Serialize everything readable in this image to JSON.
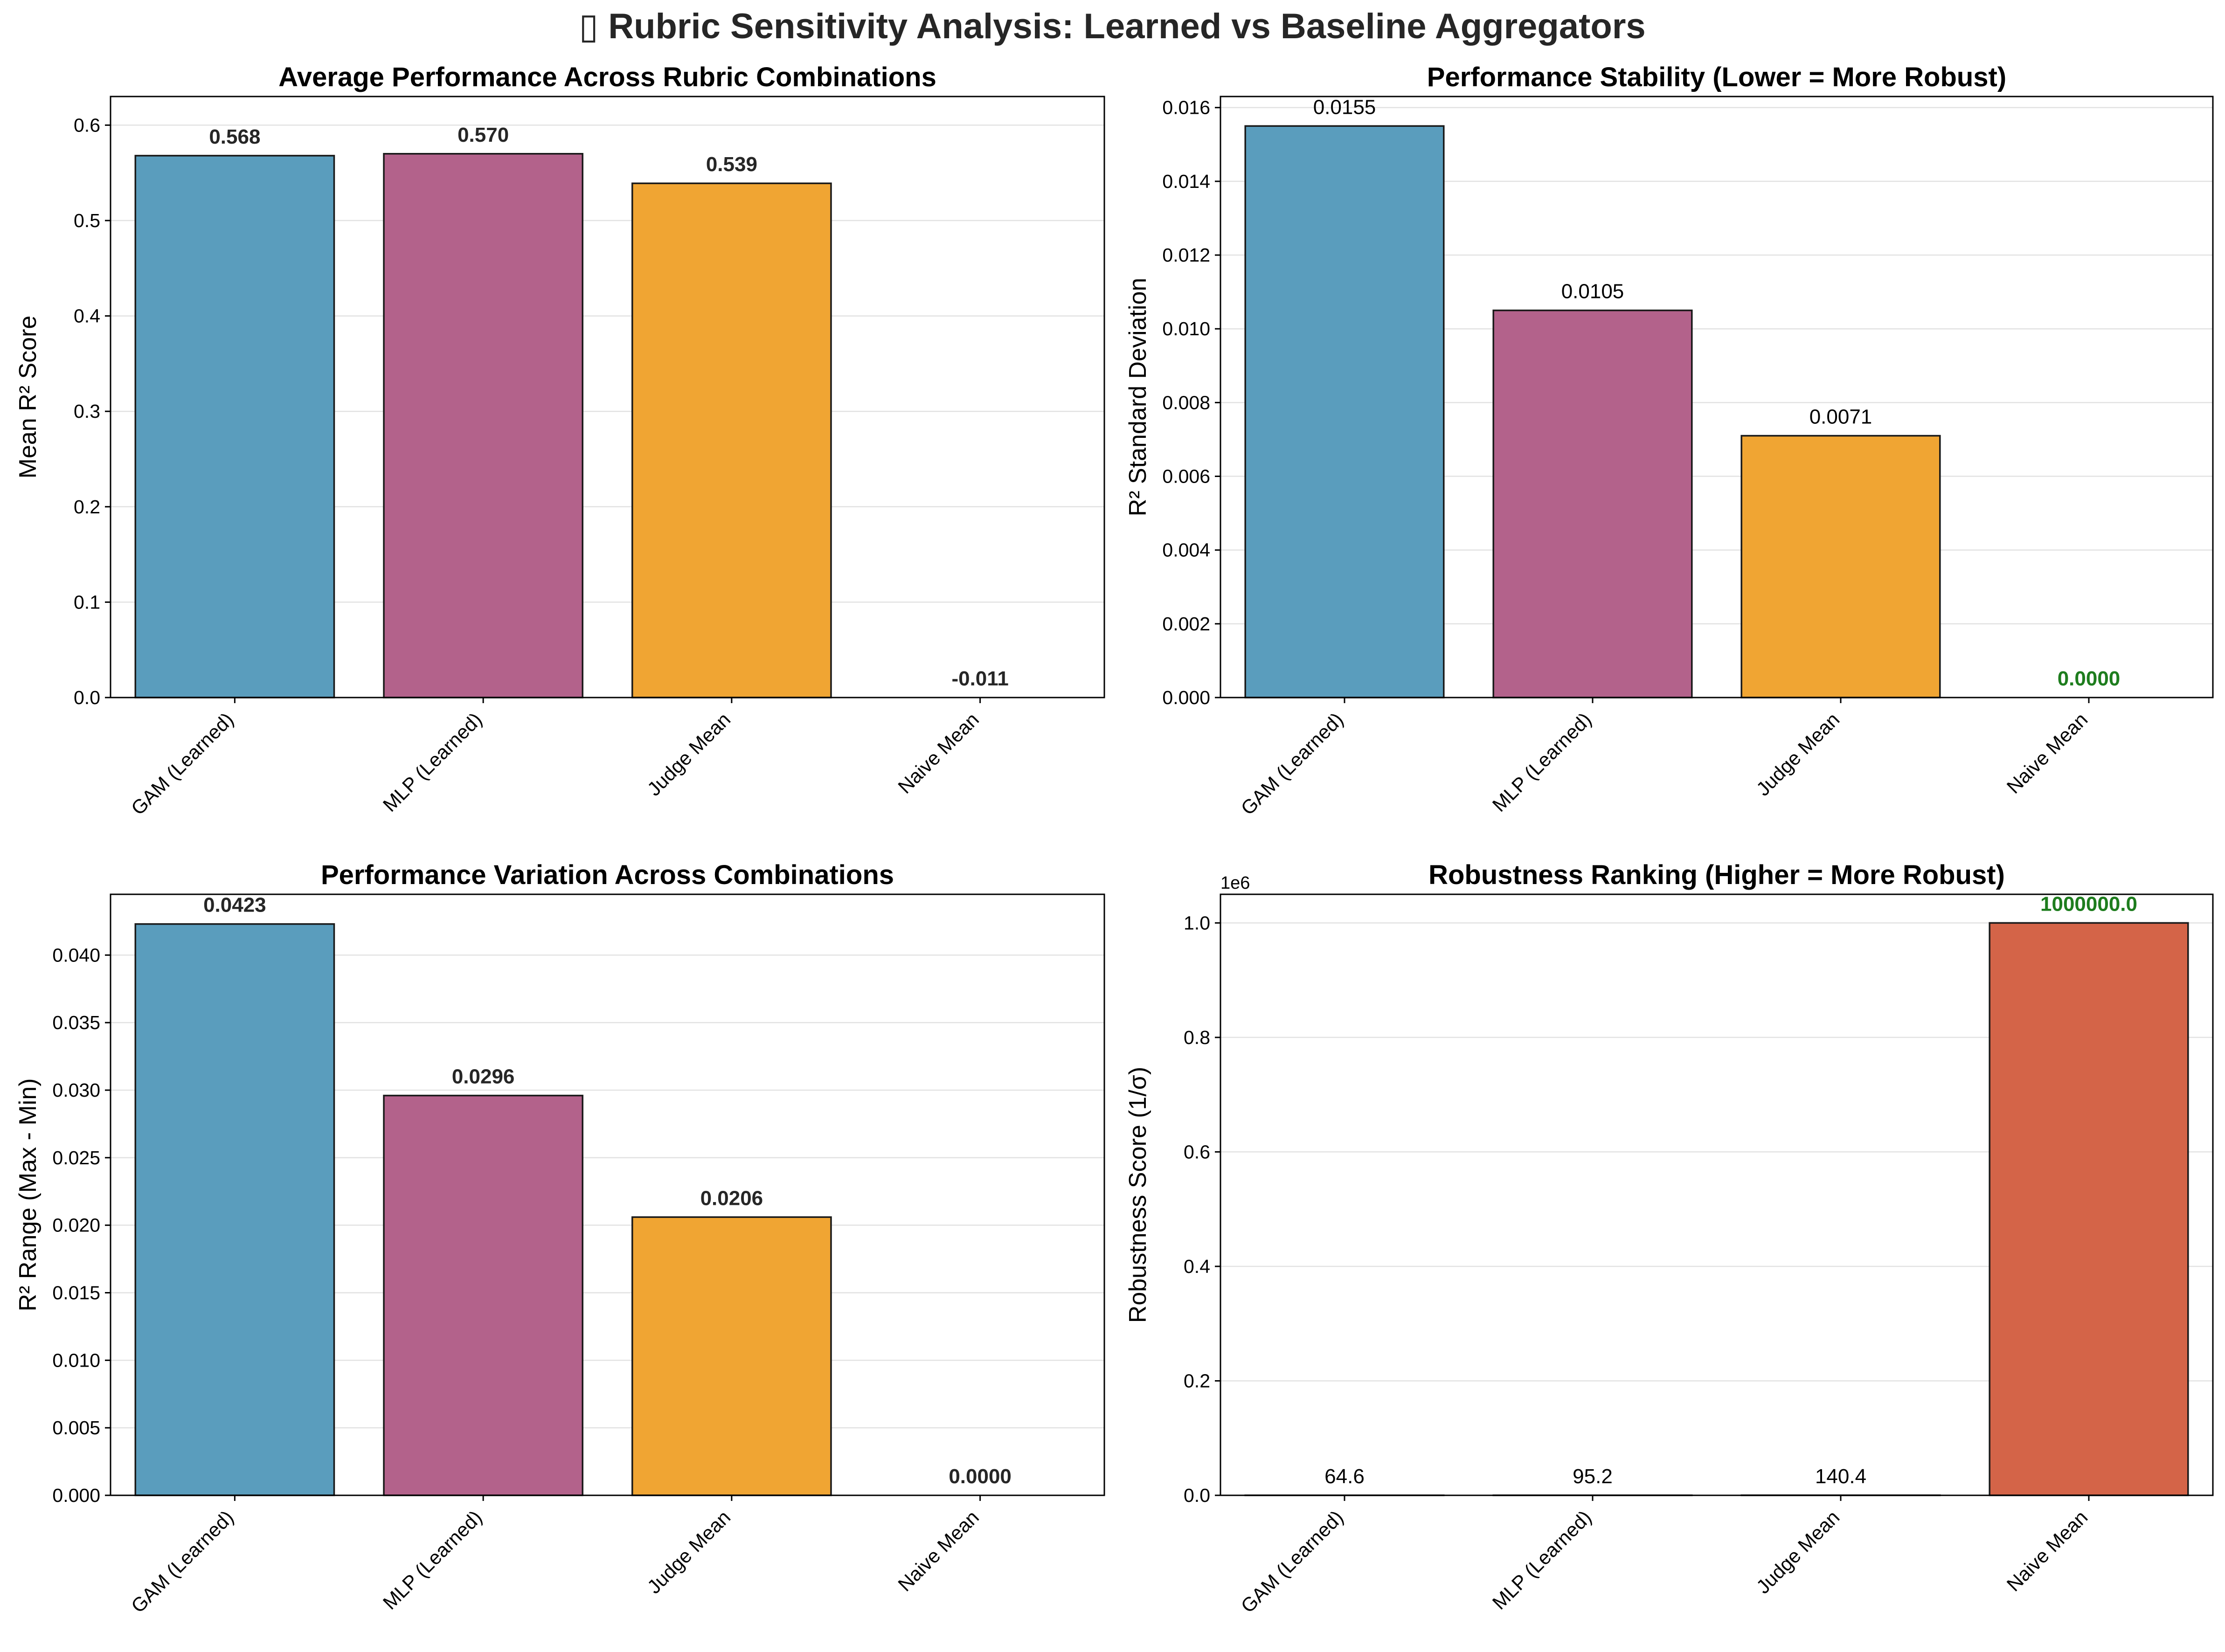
{
  "figure": {
    "suptitle": "▯ Rubric Sensitivity Analysis: Learned vs Baseline Aggregators"
  },
  "chart_data": [
    {
      "type": "bar",
      "title": "Average Performance Across Rubric Combinations",
      "xlabel": "",
      "ylabel": "Mean R² Score",
      "categories": [
        "GAM (Learned)",
        "MLP (Learned)",
        "Judge Mean",
        "Naive Mean"
      ],
      "values": [
        0.568,
        0.57,
        0.539,
        -0.011
      ],
      "value_labels": [
        "0.568",
        "0.570",
        "0.539",
        "-0.011"
      ],
      "label_styles": [
        "bold",
        "bold",
        "bold",
        "bold"
      ],
      "colors": [
        "#5a9dbd",
        "#b3628b",
        "#f0a533",
        "#d46448"
      ],
      "ylim": [
        0,
        0.63
      ],
      "yticks": [
        0.0,
        0.1,
        0.2,
        0.3,
        0.4,
        0.5,
        0.6
      ],
      "ytick_labels": [
        "0.0",
        "0.1",
        "0.2",
        "0.3",
        "0.4",
        "0.5",
        "0.6"
      ],
      "grid": true
    },
    {
      "type": "bar",
      "title": "Performance Stability (Lower = More Robust)",
      "xlabel": "",
      "ylabel": "R² Standard Deviation",
      "categories": [
        "GAM (Learned)",
        "MLP (Learned)",
        "Judge Mean",
        "Naive Mean"
      ],
      "values": [
        0.0155,
        0.0105,
        0.0071,
        0.0
      ],
      "value_labels": [
        "0.0155",
        "0.0105",
        "0.0071",
        "0.0000"
      ],
      "label_styles": [
        "normal",
        "normal",
        "normal",
        "green"
      ],
      "colors": [
        "#5a9dbd",
        "#b3628b",
        "#f0a533",
        "#d46448"
      ],
      "ylim": [
        0,
        0.0163
      ],
      "yticks": [
        0.0,
        0.002,
        0.004,
        0.006,
        0.008,
        0.01,
        0.012,
        0.014,
        0.016
      ],
      "ytick_labels": [
        "0.000",
        "0.002",
        "0.004",
        "0.006",
        "0.008",
        "0.010",
        "0.012",
        "0.014",
        "0.016"
      ],
      "grid": true
    },
    {
      "type": "bar",
      "title": "Performance Variation Across Combinations",
      "xlabel": "",
      "ylabel": "R² Range (Max - Min)",
      "categories": [
        "GAM (Learned)",
        "MLP (Learned)",
        "Judge Mean",
        "Naive Mean"
      ],
      "values": [
        0.0423,
        0.0296,
        0.0206,
        0.0
      ],
      "value_labels": [
        "0.0423",
        "0.0296",
        "0.0206",
        "0.0000"
      ],
      "label_styles": [
        "bold",
        "bold",
        "bold",
        "bold"
      ],
      "colors": [
        "#5a9dbd",
        "#b3628b",
        "#f0a533",
        "#d46448"
      ],
      "ylim": [
        0,
        0.0445
      ],
      "yticks": [
        0.0,
        0.005,
        0.01,
        0.015,
        0.02,
        0.025,
        0.03,
        0.035,
        0.04
      ],
      "ytick_labels": [
        "0.000",
        "0.005",
        "0.010",
        "0.015",
        "0.020",
        "0.025",
        "0.030",
        "0.035",
        "0.040"
      ],
      "grid": true
    },
    {
      "type": "bar",
      "title": "Robustness Ranking (Higher = More Robust)",
      "xlabel": "",
      "ylabel": "Robustness Score (1/σ)",
      "offset_label": "1e6",
      "categories": [
        "GAM (Learned)",
        "MLP (Learned)",
        "Judge Mean",
        "Naive Mean"
      ],
      "values": [
        64.6,
        95.2,
        140.4,
        1000000.0
      ],
      "value_labels": [
        "64.6",
        "95.2",
        "140.4",
        "1000000.0"
      ],
      "label_styles": [
        "normal",
        "normal",
        "normal",
        "green"
      ],
      "colors": [
        "#5a9dbd",
        "#b3628b",
        "#f0a533",
        "#d46448"
      ],
      "ylim": [
        0,
        1050000
      ],
      "yticks": [
        0,
        200000,
        400000,
        600000,
        800000,
        1000000
      ],
      "ytick_labels": [
        "0.0",
        "0.2",
        "0.4",
        "0.6",
        "0.8",
        "1.0"
      ],
      "grid": true
    }
  ]
}
